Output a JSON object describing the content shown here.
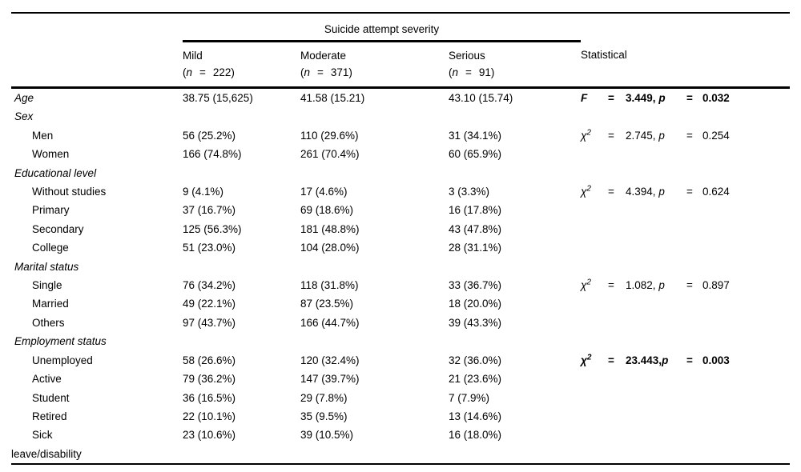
{
  "table": {
    "title": "Suicide attempt severity",
    "stat_header": "Statistical",
    "eq": "=",
    "n_var": "n",
    "paren_open": "(",
    "paren_close": ")",
    "colors": {
      "text": "#000000",
      "rule": "#000000",
      "background": "#ffffff"
    },
    "severity_columns": [
      {
        "name": "Mild",
        "n": "222"
      },
      {
        "name": "Moderate",
        "n": "371"
      },
      {
        "name": "Serious",
        "n": "91"
      }
    ],
    "rows": [
      {
        "label": "Age",
        "style": "category",
        "cells": [
          "38.75 (15,625)",
          "41.58 (15.21)",
          "43.10 (15.74)"
        ],
        "stat": {
          "sym": "F",
          "sup": "",
          "val": "3.449, ",
          "p": "p",
          "pval": "0.032",
          "bold": true
        }
      },
      {
        "label": "Sex",
        "style": "category"
      },
      {
        "label": "Men",
        "style": "item",
        "cells": [
          "56 (25.2%)",
          "110 (29.6%)",
          "31 (34.1%)"
        ],
        "stat": {
          "sym": "χ",
          "sup": "2",
          "val": "2.745, ",
          "p": "p",
          "pval": "0.254",
          "bold": false
        }
      },
      {
        "label": "Women",
        "style": "item",
        "cells": [
          "166 (74.8%)",
          "261 (70.4%)",
          "60 (65.9%)"
        ]
      },
      {
        "label": "Educational level",
        "style": "category"
      },
      {
        "label": "Without studies",
        "style": "item",
        "cells": [
          "9 (4.1%)",
          "17 (4.6%)",
          "3 (3.3%)"
        ],
        "stat": {
          "sym": "χ",
          "sup": "2",
          "val": "4.394, ",
          "p": "p",
          "pval": "0.624",
          "bold": false
        }
      },
      {
        "label": "Primary",
        "style": "item",
        "cells": [
          "37 (16.7%)",
          "69 (18.6%)",
          "16 (17.8%)"
        ]
      },
      {
        "label": "Secondary",
        "style": "item",
        "cells": [
          "125 (56.3%)",
          "181 (48.8%)",
          "43 (47.8%)"
        ]
      },
      {
        "label": "College",
        "style": "item",
        "cells": [
          "51 (23.0%)",
          "104 (28.0%)",
          "28 (31.1%)"
        ]
      },
      {
        "label": "Marital status",
        "style": "category"
      },
      {
        "label": "Single",
        "style": "item",
        "cells": [
          "76 (34.2%)",
          "118 (31.8%)",
          "33 (36.7%)"
        ],
        "stat": {
          "sym": "χ",
          "sup": "2",
          "val": "1.082, ",
          "p": "p",
          "pval": "0.897",
          "bold": false
        }
      },
      {
        "label": "Married",
        "style": "item",
        "cells": [
          "49 (22.1%)",
          "87 (23.5%)",
          "18 (20.0%)"
        ]
      },
      {
        "label": "Others",
        "style": "item",
        "cells": [
          "97 (43.7%)",
          "166 (44.7%)",
          "39 (43.3%)"
        ]
      },
      {
        "label": "Employment status",
        "style": "category"
      },
      {
        "label": "Unemployed",
        "style": "item",
        "cells": [
          "58 (26.6%)",
          "120 (32.4%)",
          "32 (36.0%)"
        ],
        "stat": {
          "sym": "χ",
          "sup": "2",
          "val": "23.443,",
          "p": "p",
          "pval": "0.003",
          "bold": true
        }
      },
      {
        "label": "Active",
        "style": "item",
        "cells": [
          "79 (36.2%)",
          "147 (39.7%)",
          "21 (23.6%)"
        ]
      },
      {
        "label": "Student",
        "style": "item",
        "cells": [
          "36 (16.5%)",
          "29 (7.8%)",
          "7 (7.9%)"
        ]
      },
      {
        "label": "Retired",
        "style": "item",
        "cells": [
          "22 (10.1%)",
          "35 (9.5%)",
          "13 (14.6%)"
        ]
      },
      {
        "label": "Sick",
        "style": "item",
        "cells": [
          "23 (10.6%)",
          "39 (10.5%)",
          "16 (18.0%)"
        ]
      },
      {
        "label": "leave/disability",
        "style": "hang"
      }
    ]
  }
}
